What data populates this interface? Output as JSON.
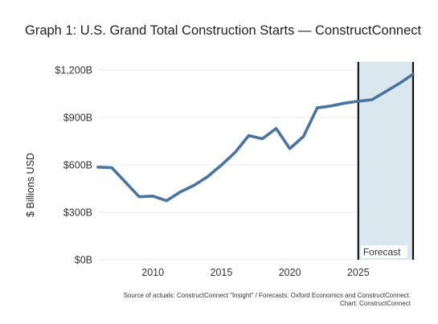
{
  "chart_data": {
    "type": "line",
    "title": "Graph 1: U.S. Grand Total Construction Starts — ConstructConnect",
    "ylabel": "$ Billions USD",
    "xlabel": "",
    "xlim": [
      2006,
      2029
    ],
    "ylim": [
      0,
      1200
    ],
    "x_ticks": [
      2010,
      2015,
      2020,
      2025
    ],
    "y_ticks": [
      {
        "value": 0,
        "label": "$0B"
      },
      {
        "value": 300,
        "label": "$300B"
      },
      {
        "value": 600,
        "label": "$600B"
      },
      {
        "value": 900,
        "label": "$900B"
      },
      {
        "value": 1200,
        "label": "$1,200B"
      }
    ],
    "grid": "horizontal",
    "series": [
      {
        "color": "#4a73a0",
        "x": [
          2006,
          2007,
          2008,
          2009,
          2010,
          2011,
          2012,
          2013,
          2014,
          2015,
          2016,
          2017,
          2018,
          2019,
          2020,
          2021,
          2022,
          2023,
          2024,
          2025,
          2026,
          2027,
          2028,
          2029
        ],
        "y": [
          585,
          582,
          490,
          398,
          402,
          373,
          428,
          470,
          525,
          598,
          678,
          785,
          765,
          830,
          702,
          780,
          960,
          972,
          990,
          1002,
          1012,
          1063,
          1115,
          1173
        ]
      }
    ],
    "forecast": {
      "label": "Forecast",
      "start": 2025,
      "end": 2029,
      "shade_color": "#dbe7ef"
    },
    "source_lines": [
      "Source of actuals: ConstructConnect \"Insight\" / Forecasts: Oxford Economics and ConstructConnect.",
      "Chart: ConstructConnect"
    ]
  }
}
